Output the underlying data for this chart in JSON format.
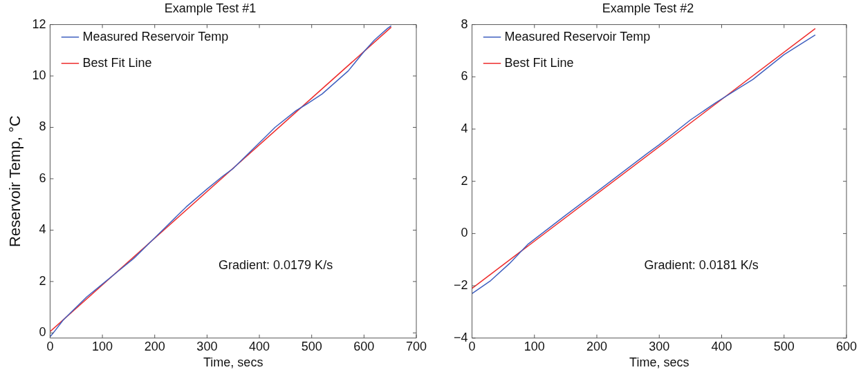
{
  "chart_data": [
    {
      "type": "line",
      "title": "Example Test #1",
      "xlabel": "Time, secs",
      "ylabel": "Reservoir Temp, °C",
      "series": [
        {
          "name": "Measured Reservoir Temp",
          "color": "#3f5fbf",
          "x": [
            0,
            10,
            25,
            40,
            70,
            100,
            130,
            160,
            190,
            220,
            260,
            300,
            330,
            350,
            380,
            410,
            430,
            470,
            490,
            520,
            570,
            600,
            620,
            645,
            652
          ],
          "values": [
            -0.15,
            0.1,
            0.5,
            0.8,
            1.4,
            1.9,
            2.4,
            2.9,
            3.5,
            4.1,
            4.9,
            5.6,
            6.1,
            6.4,
            7.0,
            7.6,
            8.0,
            8.65,
            8.9,
            9.3,
            10.2,
            10.95,
            11.4,
            11.85,
            11.95
          ]
        },
        {
          "name": "Best Fit Line",
          "color": "#ee2b2b",
          "x": [
            0,
            652
          ],
          "values": [
            0.05,
            11.9
          ]
        }
      ],
      "xlim": [
        0,
        700
      ],
      "xticks": [
        0,
        100,
        200,
        300,
        400,
        500,
        600,
        700
      ],
      "ylim": [
        -0.2,
        12
      ],
      "yticks": [
        0,
        2,
        4,
        6,
        8,
        10,
        12
      ],
      "grid": false,
      "legend": "top left",
      "marker": "none",
      "line_style": "solid",
      "annotations": [
        "Gradient: 0.0179 K/s"
      ]
    },
    {
      "type": "line",
      "title": "Example Test #2",
      "xlabel": "Time, secs",
      "series": [
        {
          "name": "Measured Reservoir Temp",
          "color": "#3f5fbf",
          "x": [
            0,
            30,
            60,
            90,
            150,
            200,
            280,
            300,
            350,
            390,
            430,
            450,
            500,
            550
          ],
          "values": [
            -2.3,
            -1.8,
            -1.15,
            -0.4,
            0.7,
            1.6,
            3.05,
            3.4,
            4.35,
            5.0,
            5.6,
            5.9,
            6.85,
            7.6
          ]
        },
        {
          "name": "Best Fit Line",
          "color": "#ee2b2b",
          "x": [
            0,
            550
          ],
          "values": [
            -2.1,
            7.85
          ]
        }
      ],
      "xlim": [
        0,
        600
      ],
      "xticks": [
        0,
        100,
        200,
        300,
        400,
        500,
        600
      ],
      "ylim": [
        -4,
        8
      ],
      "yticks": [
        -4,
        -2,
        0,
        2,
        4,
        6,
        8
      ],
      "grid": false,
      "legend": "top left",
      "marker": "none",
      "line_style": "solid",
      "annotations": [
        "Gradient: 0.0181 K/s"
      ]
    }
  ]
}
